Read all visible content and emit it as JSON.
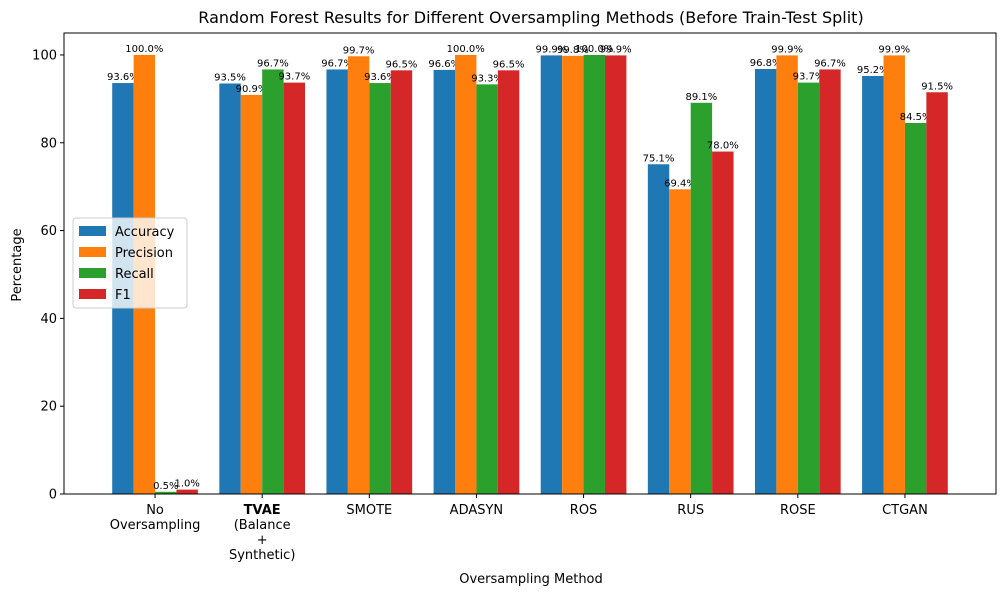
{
  "chart_data": {
    "type": "bar",
    "title": "Random Forest Results for Different Oversampling Methods (Before Train-Test Split)",
    "xlabel": "Oversampling Method",
    "ylabel": "Percentage",
    "ylim": [
      0,
      105
    ],
    "yticks": [
      0,
      20,
      40,
      60,
      80,
      100
    ],
    "grid": false,
    "legend_position": "center-left",
    "categories": [
      {
        "lines": [
          "No",
          "Oversampling"
        ],
        "bold": false
      },
      {
        "lines": [
          "TVAE",
          "(Balance",
          "+",
          "Synthetic)"
        ],
        "bold": true
      },
      {
        "lines": [
          "SMOTE"
        ],
        "bold": false
      },
      {
        "lines": [
          "ADASYN"
        ],
        "bold": false
      },
      {
        "lines": [
          "ROS"
        ],
        "bold": false
      },
      {
        "lines": [
          "RUS"
        ],
        "bold": false
      },
      {
        "lines": [
          "ROSE"
        ],
        "bold": false
      },
      {
        "lines": [
          "CTGAN"
        ],
        "bold": false
      }
    ],
    "series": [
      {
        "name": "Accuracy",
        "color": "#1f77b4",
        "values": [
          93.6,
          93.5,
          96.7,
          96.6,
          99.9,
          75.1,
          96.8,
          95.2
        ]
      },
      {
        "name": "Precision",
        "color": "#ff7f0e",
        "values": [
          100.0,
          90.9,
          99.7,
          100.0,
          99.8,
          69.4,
          99.9,
          99.9
        ]
      },
      {
        "name": "Recall",
        "color": "#2ca02c",
        "values": [
          0.5,
          96.7,
          93.6,
          93.3,
          100.0,
          89.1,
          93.7,
          84.5
        ]
      },
      {
        "name": "F1",
        "color": "#d62728",
        "values": [
          1.0,
          93.7,
          96.5,
          96.5,
          99.9,
          78.0,
          96.7,
          91.5
        ]
      }
    ],
    "label_format": "{v}%"
  }
}
